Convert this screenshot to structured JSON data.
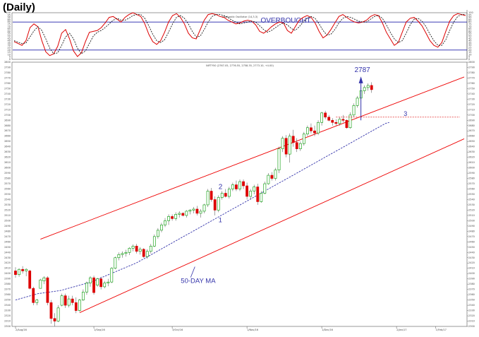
{
  "page": {
    "title": "(Daily)"
  },
  "chart_data": [
    {
      "type": "line",
      "panel": "stochastic-oscillator",
      "title": "Stochastic Oscillator (14,3,3)",
      "ylim": [
        0,
        100
      ],
      "y_ticks": [
        100,
        95,
        90,
        85,
        80,
        75,
        70,
        65,
        60,
        55,
        50,
        45,
        40,
        35,
        30,
        25,
        20,
        15,
        10,
        5,
        0
      ],
      "levels": [
        {
          "label": "OVERBOUGHT",
          "value": 80
        },
        {
          "label": "",
          "value": 20
        }
      ],
      "series": [
        {
          "style": "solid",
          "color": "#dd0000",
          "values": [
            38,
            34,
            30,
            40,
            68,
            76,
            70,
            40,
            16,
            8,
            12,
            28,
            56,
            64,
            44,
            18,
            6,
            14,
            38,
            58,
            60,
            62,
            68,
            78,
            90,
            92,
            86,
            80,
            90,
            96,
            100,
            96,
            92,
            76,
            54,
            38,
            32,
            40,
            58,
            80,
            94,
            98,
            90,
            76,
            56,
            46,
            44,
            64,
            84,
            96,
            98,
            96,
            92,
            90,
            84,
            80,
            76,
            78,
            82,
            84,
            82,
            74,
            60,
            56,
            62,
            70,
            76,
            80,
            78,
            62,
            56,
            70,
            84,
            90,
            94,
            90,
            78,
            60,
            46,
            52,
            64,
            78,
            92,
            96,
            90,
            84,
            80,
            78,
            80,
            84,
            92,
            96,
            94,
            78,
            58,
            44,
            30,
            36,
            58,
            80,
            88,
            90,
            82,
            72,
            56,
            40,
            30,
            26,
            36,
            60,
            82,
            94,
            98,
            96,
            94
          ]
        },
        {
          "style": "dashed",
          "color": "#000000",
          "values": [
            40,
            37,
            34,
            35,
            48,
            61,
            70,
            62,
            44,
            24,
            12,
            14,
            30,
            48,
            56,
            44,
            24,
            12,
            18,
            34,
            50,
            58,
            62,
            68,
            76,
            84,
            88,
            84,
            84,
            88,
            94,
            96,
            96,
            88,
            72,
            54,
            40,
            36,
            42,
            58,
            76,
            90,
            94,
            88,
            76,
            60,
            48,
            50,
            64,
            80,
            92,
            96,
            96,
            94,
            90,
            84,
            80,
            76,
            78,
            80,
            82,
            80,
            72,
            64,
            58,
            62,
            68,
            74,
            78,
            74,
            66,
            62,
            70,
            80,
            88,
            92,
            88,
            76,
            62,
            52,
            54,
            64,
            78,
            88,
            92,
            90,
            86,
            82,
            80,
            80,
            86,
            92,
            94,
            88,
            74,
            58,
            44,
            36,
            40,
            56,
            74,
            86,
            88,
            82,
            70,
            54,
            40,
            30,
            30,
            42,
            62,
            80,
            92,
            96,
            96
          ]
        }
      ],
      "xlim": [
        0,
        114
      ]
    },
    {
      "type": "candlestick",
      "panel": "price",
      "title": "NIFTY50 (2767.05, 2776.55, 2758.35, 2773.10, +4.00)",
      "ylim": [
        2300,
        2800
      ],
      "y_ticks": [
        2800,
        2790,
        2780,
        2770,
        2760,
        2750,
        2740,
        2730,
        2720,
        2710,
        2700,
        2690,
        2680,
        2670,
        2660,
        2650,
        2640,
        2630,
        2620,
        2610,
        2600,
        2590,
        2580,
        2570,
        2560,
        2550,
        2540,
        2530,
        2520,
        2510,
        2500,
        2490,
        2480,
        2470,
        2460,
        2450,
        2440,
        2430,
        2420,
        2410,
        2400,
        2390,
        2380,
        2370,
        2360,
        2350,
        2340,
        2330,
        2320,
        2310,
        2300
      ],
      "x_labels": [
        "2/Aug/16",
        "1/Sep/16",
        "3/Oct/16",
        "1/Nov/16",
        "1/Dec/16",
        "2/Jan/17",
        "1/Feb/17"
      ],
      "x_label_bars": [
        0,
        22,
        44,
        65,
        86,
        107,
        118
      ],
      "xlim": [
        0,
        126
      ],
      "candles": [
        [
          2405,
          2412,
          2392,
          2398
        ],
        [
          2398,
          2410,
          2394,
          2408
        ],
        [
          2408,
          2414,
          2400,
          2405
        ],
        [
          2405,
          2410,
          2395,
          2408
        ],
        [
          2405,
          2407,
          2370,
          2372
        ],
        [
          2372,
          2375,
          2340,
          2345
        ],
        [
          2345,
          2352,
          2340,
          2350
        ],
        [
          2372,
          2390,
          2372,
          2388
        ],
        [
          2386,
          2395,
          2380,
          2392
        ],
        [
          2392,
          2395,
          2340,
          2345
        ],
        [
          2345,
          2350,
          2305,
          2315
        ],
        [
          2315,
          2325,
          2300,
          2310
        ],
        [
          2310,
          2340,
          2308,
          2335
        ],
        [
          2340,
          2362,
          2338,
          2358
        ],
        [
          2358,
          2362,
          2335,
          2340
        ],
        [
          2340,
          2358,
          2336,
          2352
        ],
        [
          2352,
          2358,
          2340,
          2345
        ],
        [
          2345,
          2355,
          2325,
          2330
        ],
        [
          2330,
          2352,
          2328,
          2350
        ],
        [
          2350,
          2370,
          2348,
          2365
        ],
        [
          2365,
          2385,
          2360,
          2382
        ],
        [
          2382,
          2395,
          2375,
          2392
        ],
        [
          2392,
          2396,
          2360,
          2364
        ],
        [
          2378,
          2392,
          2375,
          2390
        ],
        [
          2390,
          2394,
          2370,
          2375
        ],
        [
          2375,
          2386,
          2372,
          2382
        ],
        [
          2382,
          2390,
          2376,
          2384
        ],
        [
          2384,
          2412,
          2382,
          2410
        ],
        [
          2410,
          2432,
          2408,
          2430
        ],
        [
          2430,
          2440,
          2425,
          2436
        ],
        [
          2436,
          2442,
          2430,
          2438
        ],
        [
          2438,
          2445,
          2432,
          2440
        ],
        [
          2440,
          2450,
          2435,
          2448
        ],
        [
          2448,
          2455,
          2442,
          2452
        ],
        [
          2452,
          2456,
          2438,
          2442
        ],
        [
          2442,
          2450,
          2436,
          2446
        ],
        [
          2446,
          2448,
          2430,
          2432
        ],
        [
          2432,
          2446,
          2428,
          2442
        ],
        [
          2442,
          2456,
          2438,
          2452
        ],
        [
          2452,
          2474,
          2450,
          2470
        ],
        [
          2470,
          2486,
          2466,
          2482
        ],
        [
          2482,
          2496,
          2478,
          2492
        ],
        [
          2492,
          2505,
          2488,
          2500
        ],
        [
          2500,
          2512,
          2492,
          2508
        ],
        [
          2508,
          2512,
          2500,
          2504
        ],
        [
          2504,
          2516,
          2500,
          2512
        ],
        [
          2512,
          2518,
          2506,
          2514
        ],
        [
          2514,
          2516,
          2508,
          2510
        ],
        [
          2510,
          2520,
          2506,
          2518
        ],
        [
          2518,
          2522,
          2512,
          2520
        ],
        [
          2520,
          2526,
          2514,
          2522
        ],
        [
          2522,
          2528,
          2510,
          2514
        ],
        [
          2514,
          2522,
          2506,
          2518
        ],
        [
          2518,
          2532,
          2514,
          2530
        ],
        [
          2530,
          2560,
          2526,
          2556
        ],
        [
          2556,
          2562,
          2536,
          2540
        ],
        [
          2540,
          2546,
          2510,
          2520
        ],
        [
          2520,
          2548,
          2516,
          2544
        ],
        [
          2544,
          2556,
          2540,
          2552
        ],
        [
          2552,
          2560,
          2544,
          2546
        ],
        [
          2546,
          2564,
          2542,
          2560
        ],
        [
          2560,
          2572,
          2556,
          2568
        ],
        [
          2568,
          2576,
          2556,
          2560
        ],
        [
          2560,
          2578,
          2556,
          2574
        ],
        [
          2574,
          2578,
          2560,
          2566
        ],
        [
          2566,
          2572,
          2540,
          2546
        ],
        [
          2546,
          2560,
          2540,
          2556
        ],
        [
          2556,
          2568,
          2550,
          2564
        ],
        [
          2564,
          2570,
          2530,
          2536
        ],
        [
          2536,
          2556,
          2534,
          2552
        ],
        [
          2552,
          2574,
          2550,
          2570
        ],
        [
          2570,
          2590,
          2568,
          2586
        ],
        [
          2586,
          2592,
          2576,
          2580
        ],
        [
          2580,
          2600,
          2576,
          2596
        ],
        [
          2596,
          2640,
          2590,
          2636
        ],
        [
          2636,
          2660,
          2630,
          2656
        ],
        [
          2656,
          2662,
          2620,
          2626
        ],
        [
          2626,
          2665,
          2610,
          2660
        ],
        [
          2660,
          2672,
          2640,
          2648
        ],
        [
          2648,
          2656,
          2630,
          2636
        ],
        [
          2636,
          2650,
          2632,
          2646
        ],
        [
          2646,
          2668,
          2642,
          2664
        ],
        [
          2664,
          2680,
          2660,
          2676
        ],
        [
          2676,
          2684,
          2665,
          2670
        ],
        [
          2670,
          2680,
          2660,
          2666
        ],
        [
          2666,
          2690,
          2662,
          2686
        ],
        [
          2686,
          2706,
          2680,
          2704
        ],
        [
          2704,
          2708,
          2692,
          2696
        ],
        [
          2696,
          2700,
          2688,
          2690
        ],
        [
          2690,
          2694,
          2680,
          2686
        ],
        [
          2686,
          2692,
          2680,
          2684
        ],
        [
          2684,
          2696,
          2680,
          2692
        ],
        [
          2692,
          2700,
          2686,
          2690
        ],
        [
          2690,
          2692,
          2674,
          2676
        ],
        [
          2676,
          2705,
          2674,
          2700
        ],
        [
          2700,
          2722,
          2696,
          2718
        ],
        [
          2718,
          2736,
          2714,
          2732
        ],
        [
          2732,
          2748,
          2728,
          2746
        ],
        [
          2746,
          2756,
          2740,
          2752
        ],
        [
          2752,
          2760,
          2746,
          2756
        ],
        [
          2756,
          2762,
          2742,
          2748
        ]
      ],
      "series": [
        {
          "name": "50-DAY MA",
          "style": "dashed",
          "color": "#3333aa",
          "values": [
            2350,
            2352,
            2354,
            2356,
            2358,
            2360,
            2362,
            2363,
            2364,
            2365,
            2366,
            2367,
            2368,
            2370,
            2372,
            2374,
            2376,
            2378,
            2380,
            2382,
            2384,
            2387,
            2390,
            2393,
            2396,
            2399,
            2402,
            2405,
            2408,
            2411,
            2414,
            2417,
            2420,
            2424,
            2428,
            2432,
            2436,
            2440,
            2444,
            2448,
            2452,
            2456,
            2460,
            2464,
            2468,
            2472,
            2476,
            2480,
            2484,
            2488,
            2492,
            2496,
            2500,
            2504,
            2508,
            2512,
            2516,
            2520,
            2524,
            2528,
            2532,
            2536,
            2540,
            2544,
            2548,
            2552,
            2556,
            2560,
            2564,
            2568,
            2572,
            2576,
            2580,
            2584,
            2588,
            2592,
            2596,
            2600,
            2604,
            2608,
            2612,
            2616,
            2620,
            2624,
            2628,
            2632,
            2636,
            2640,
            2644,
            2648,
            2652,
            2656,
            2660,
            2664,
            2668,
            2672,
            2676,
            2680,
            2684,
            2686
          ]
        }
      ],
      "annotations": [
        {
          "label": "2787",
          "value": 2787,
          "kind": "target-arrow"
        },
        {
          "label": "2",
          "kind": "channel-upper"
        },
        {
          "label": "1",
          "kind": "channel-lower"
        },
        {
          "label": "3",
          "value": 2696,
          "kind": "horizontal-level"
        },
        {
          "label": "50-DAY MA",
          "kind": "series-label"
        }
      ],
      "channel": {
        "upper": [
          [
            7,
            2465
          ],
          [
            126,
            2772
          ]
        ],
        "lower": [
          [
            18,
            2326
          ],
          [
            126,
            2655
          ]
        ]
      },
      "colors": {
        "up": "#009900",
        "down": "#dd0000",
        "channel": "#ee0000",
        "ma": "#3333aa",
        "annotation": "#3333aa"
      }
    }
  ]
}
